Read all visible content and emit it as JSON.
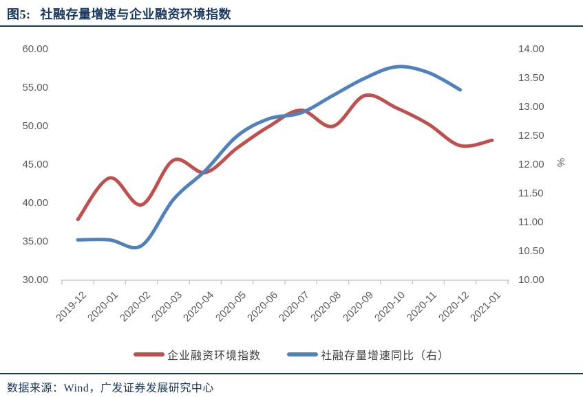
{
  "header": {
    "title_prefix": "图5:",
    "title": "社融存量增速与企业融资环境指数"
  },
  "footer": {
    "source": "数据来源：Wind，广发证券发展研究中心"
  },
  "colors": {
    "red": "#C0504D",
    "blue": "#4F81BD",
    "navy": "#17365D",
    "axis_text": "#595959",
    "axis_line": "#C9C9C9"
  },
  "chart_data": {
    "type": "line",
    "title": "图5: 社融存量增速与企业融资环境指数",
    "smooth": true,
    "grid": false,
    "legend_position": "bottom",
    "categories": [
      "2019-12",
      "2020-01",
      "2020-02",
      "2020-03",
      "2020-04",
      "2020-05",
      "2020-06",
      "2020-07",
      "2020-08",
      "2020-09",
      "2020-10",
      "2020-11",
      "2020-12",
      "2021-01"
    ],
    "series": [
      {
        "name": "企业融资环境指数",
        "axis": "left",
        "color": "#C0504D",
        "values": [
          37.9,
          43.3,
          39.8,
          45.6,
          44.0,
          47.2,
          50.0,
          52.1,
          50.0,
          54.0,
          52.4,
          50.3,
          47.5,
          48.2
        ]
      },
      {
        "name": "社融存量增速同比（右）",
        "axis": "right",
        "color": "#4F81BD",
        "values": [
          10.7,
          10.7,
          10.6,
          11.4,
          11.9,
          12.5,
          12.8,
          12.9,
          13.2,
          13.5,
          13.7,
          13.6,
          13.3,
          null
        ]
      }
    ],
    "left_axis": {
      "min": 30,
      "max": 60,
      "ticks": [
        "60.00",
        "55.00",
        "50.00",
        "45.00",
        "40.00",
        "35.00",
        "30.00"
      ]
    },
    "right_axis": {
      "min": 10,
      "max": 14,
      "unit_label": "%",
      "ticks": [
        "14.00",
        "13.50",
        "13.00",
        "12.50",
        "12.00",
        "11.50",
        "11.00",
        "10.50",
        "10.00"
      ]
    }
  }
}
